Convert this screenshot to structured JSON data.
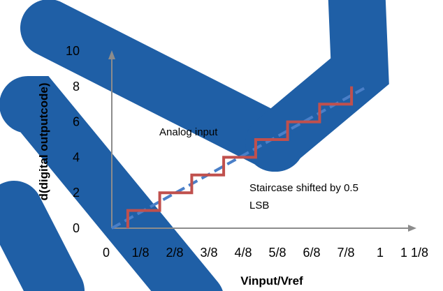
{
  "chart_data": {
    "type": "line",
    "xlabel": "Vinput/Vref",
    "ylabel": "d(digital outputcode)",
    "xlim": [
      0,
      1.125
    ],
    "ylim": [
      0,
      10
    ],
    "x_ticks": [
      "0",
      "1/8",
      "2/8",
      "3/8",
      "4/8",
      "5/8",
      "6/8",
      "7/8",
      "1",
      "1 1/8"
    ],
    "y_ticks": [
      "0",
      "2",
      "4",
      "6",
      "8",
      "10"
    ],
    "series": [
      {
        "name": "Analog input",
        "style": "dashed",
        "color": "#4a7fc8",
        "x": [
          0,
          1
        ],
        "y": [
          0,
          8
        ]
      },
      {
        "name": "Staircase shifted by 0.5 LSB",
        "style": "step",
        "color": "#c0504d",
        "x": [
          0.0625,
          0.0625,
          0.1875,
          0.1875,
          0.3125,
          0.3125,
          0.4375,
          0.4375,
          0.5625,
          0.5625,
          0.6875,
          0.6875,
          0.8125,
          0.8125,
          0.9375,
          0.9375
        ],
        "y": [
          0,
          1,
          1,
          2,
          2,
          3,
          3,
          4,
          4,
          5,
          5,
          6,
          6,
          7,
          7,
          8
        ]
      }
    ],
    "annotations": [
      {
        "text": "Analog input"
      },
      {
        "text": "Staircase shifted by 0.5"
      },
      {
        "text": "LSB"
      }
    ],
    "watermark_color": "#1f5fa6"
  }
}
